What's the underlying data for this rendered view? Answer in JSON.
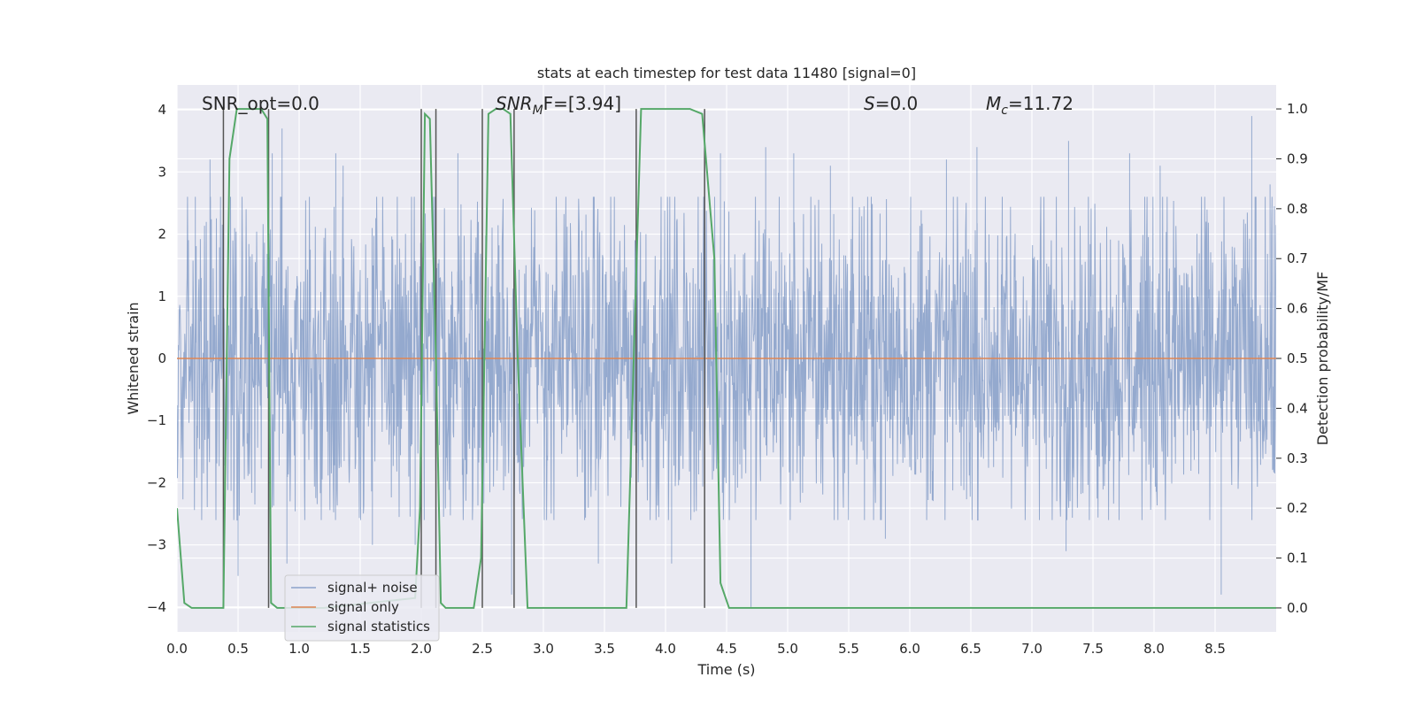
{
  "chart_data": {
    "type": "line",
    "title": "stats at each timestep for test data 11480 [signal=0]",
    "xlabel": "Time (s)",
    "ylabel": "Whitened strain",
    "y2label": "Detection probability/MF",
    "xlim": [
      0.0,
      9.0
    ],
    "ylim": [
      -4.4,
      4.4
    ],
    "y2lim": [
      -0.048,
      1.048
    ],
    "xticks": [
      "0.0",
      "0.5",
      "1.0",
      "1.5",
      "2.0",
      "2.5",
      "3.0",
      "3.5",
      "4.0",
      "4.5",
      "5.0",
      "5.5",
      "6.0",
      "6.5",
      "7.0",
      "7.5",
      "8.0",
      "8.5"
    ],
    "yticks": [
      "−4",
      "−3",
      "−2",
      "−1",
      "0",
      "1",
      "2",
      "3",
      "4"
    ],
    "y2ticks": [
      "0.0",
      "0.1",
      "0.2",
      "0.3",
      "0.4",
      "0.5",
      "0.6",
      "0.7",
      "0.8",
      "0.9",
      "1.0"
    ],
    "grid": true,
    "legend_position": "lower-left",
    "legend": [
      "signal+ noise",
      "signal only",
      "signal statistics"
    ],
    "annotations": {
      "snr_opt": "SNR_opt=0.0",
      "snr_mf_symbol": "SNR",
      "snr_mf_sub": "M",
      "snr_mf_rest": "F=[3.94]",
      "s_symbol": "S",
      "s_rest": "=0.0",
      "mc_symbol": "M",
      "mc_sub": "c",
      "mc_rest": "=11.72"
    },
    "series": [
      {
        "name": "signal+ noise",
        "color": "#4c72b0",
        "opacity": 0.55,
        "style": "dense noise trace, envelope approx ±2.5 with spikes to ±3.9",
        "spikes": [
          [
            0.15,
            2.6
          ],
          [
            0.27,
            3.2
          ],
          [
            0.5,
            -3.5
          ],
          [
            0.86,
            3.7
          ],
          [
            0.78,
            3.3
          ],
          [
            0.9,
            -3.3
          ],
          [
            1.3,
            3.3
          ],
          [
            1.36,
            3.1
          ],
          [
            1.6,
            -3.0
          ],
          [
            1.95,
            -3.0
          ],
          [
            2.3,
            3.3
          ],
          [
            2.74,
            -3.8
          ],
          [
            2.76,
            3.3
          ],
          [
            3.45,
            -3.3
          ],
          [
            4.05,
            -3.3
          ],
          [
            4.45,
            3.3
          ],
          [
            4.7,
            -4.0
          ],
          [
            4.82,
            3.4
          ],
          [
            5.05,
            3.3
          ],
          [
            5.35,
            3.1
          ],
          [
            5.8,
            -2.9
          ],
          [
            6.3,
            3.2
          ],
          [
            6.55,
            3.4
          ],
          [
            7.3,
            3.5
          ],
          [
            7.28,
            -3.1
          ],
          [
            7.8,
            3.3
          ],
          [
            8.05,
            3.1
          ],
          [
            8.55,
            -3.8
          ],
          [
            8.8,
            3.9
          ],
          [
            8.95,
            2.8
          ]
        ]
      },
      {
        "name": "signal only",
        "color": "#dd8452",
        "x": [
          0.0,
          9.0
        ],
        "y": [
          0.0,
          0.0
        ]
      },
      {
        "name": "signal statistics",
        "color": "#55a868",
        "axis": "right",
        "x": [
          0.0,
          0.06,
          0.12,
          0.38,
          0.43,
          0.49,
          0.57,
          0.69,
          0.74,
          0.77,
          0.82,
          1.2,
          1.95,
          1.99,
          2.03,
          2.07,
          2.12,
          2.16,
          2.2,
          2.43,
          2.49,
          2.55,
          2.61,
          2.67,
          2.73,
          2.79,
          2.87,
          3.68,
          3.74,
          3.8,
          3.88,
          4.2,
          4.3,
          4.4,
          4.45,
          4.52,
          9.0
        ],
        "y": [
          0.2,
          0.01,
          0.0,
          0.0,
          0.9,
          1.0,
          1.0,
          1.0,
          0.98,
          0.01,
          0.0,
          0.0,
          0.02,
          0.2,
          0.99,
          0.98,
          0.5,
          0.01,
          0.0,
          0.0,
          0.1,
          0.99,
          1.0,
          1.0,
          0.99,
          0.5,
          0.0,
          0.0,
          0.5,
          1.0,
          1.0,
          1.0,
          0.99,
          0.7,
          0.05,
          0.0,
          0.0
        ]
      }
    ],
    "detection_markers_s": [
      0.38,
      0.75,
      2.0,
      2.12,
      2.5,
      2.76,
      3.76,
      4.32
    ]
  }
}
